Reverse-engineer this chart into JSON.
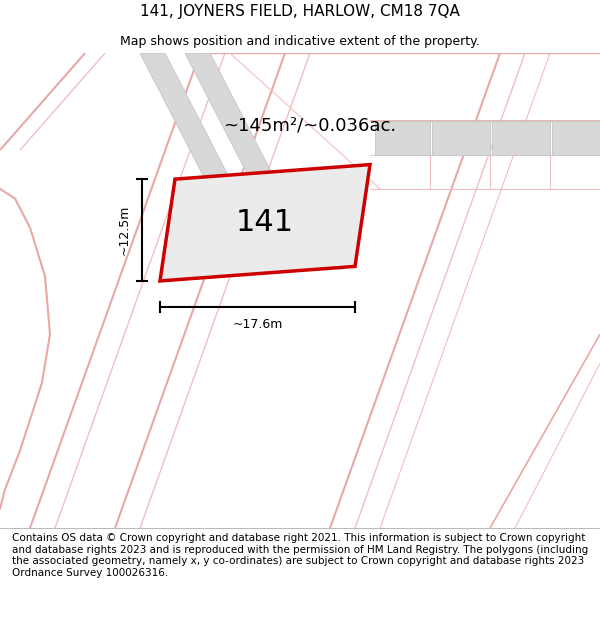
{
  "title": "141, JOYNERS FIELD, HARLOW, CM18 7QA",
  "subtitle": "Map shows position and indicative extent of the property.",
  "footer": "Contains OS data © Crown copyright and database right 2021. This information is subject to Crown copyright and database rights 2023 and is reproduced with the permission of HM Land Registry. The polygons (including the associated geometry, namely x, y co-ordinates) are subject to Crown copyright and database rights 2023 Ordnance Survey 100026316.",
  "area_label": "~145m²/~0.036ac.",
  "number_label": "141",
  "dim_width": "~17.6m",
  "dim_height": "~12.5m",
  "background_color": "#ffffff",
  "plot_fill_color": "#ebebeb",
  "plot_border_color": "#cc0000",
  "gray_fill_color": "#d8d8d8",
  "gray_edge_color": "#c8c8c8",
  "road_line_color": "#e8a8a8",
  "road_line_color2": "#f0c0c0",
  "title_fontsize": 11,
  "subtitle_fontsize": 9,
  "footer_fontsize": 7.5,
  "area_label_fontsize": 13,
  "number_label_fontsize": 22,
  "dim_fontsize": 9
}
